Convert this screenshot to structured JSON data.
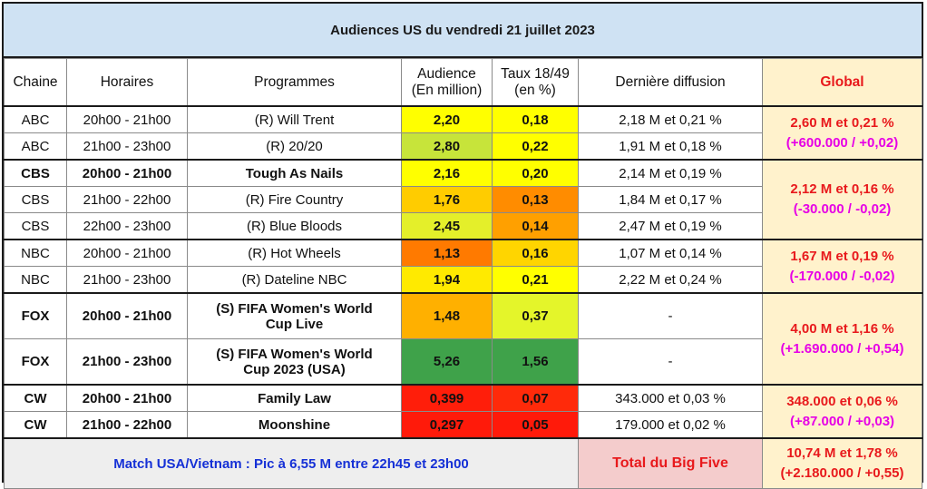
{
  "title": "Audiences US du vendredi 21 juillet 2023",
  "headers": {
    "chaine": "Chaine",
    "horaires": "Horaires",
    "programmes": "Programmes",
    "audience_1": "Audience",
    "audience_2": "(En million)",
    "taux_1": "Taux 18/49",
    "taux_2": "(en %)",
    "derniere": "Dernière diffusion",
    "global": "Global"
  },
  "rows": [
    {
      "chaine": "ABC",
      "horaires": "20h00 - 21h00",
      "programme": "(R) Will Trent",
      "audience": "2,20",
      "taux": "0,18",
      "derniere": "2,18 M et 0,21 %",
      "aud_color": "#ffff00",
      "taux_color": "#ffff00"
    },
    {
      "chaine": "ABC",
      "horaires": "21h00 - 23h00",
      "programme": "(R) 20/20",
      "audience": "2,80",
      "taux": "0,22",
      "derniere": "1,91 M et 0,18 %",
      "aud_color": "#c7e43a",
      "taux_color": "#ffff00"
    },
    {
      "chaine": "CBS",
      "horaires": "20h00 - 21h00",
      "programme": "Tough As Nails",
      "audience": "2,16",
      "taux": "0,20",
      "derniere": "2,14 M et 0,19 %",
      "aud_color": "#ffff00",
      "taux_color": "#ffff00"
    },
    {
      "chaine": "CBS",
      "horaires": "21h00 - 22h00",
      "programme": "(R) Fire Country",
      "audience": "1,76",
      "taux": "0,13",
      "derniere": "1,84 M et 0,17 %",
      "aud_color": "#ffcc00",
      "taux_color": "#ff8c00"
    },
    {
      "chaine": "CBS",
      "horaires": "22h00 - 23h00",
      "programme": "(R) Blue Bloods",
      "audience": "2,45",
      "taux": "0,14",
      "derniere": "2,47 M et 0,19 %",
      "aud_color": "#e4ef2a",
      "taux_color": "#ffa000"
    },
    {
      "chaine": "NBC",
      "horaires": "20h00 - 21h00",
      "programme": "(R) Hot Wheels",
      "audience": "1,13",
      "taux": "0,16",
      "derniere": "1,07 M et 0,14 %",
      "aud_color": "#ff7a00",
      "taux_color": "#ffd500"
    },
    {
      "chaine": "NBC",
      "horaires": "21h00 - 23h00",
      "programme": "(R) Dateline NBC",
      "audience": "1,94",
      "taux": "0,21",
      "derniere": "2,22 M et 0,24 %",
      "aud_color": "#ffea00",
      "taux_color": "#ffff00"
    },
    {
      "chaine": "FOX",
      "horaires": "20h00 - 21h00",
      "programme_1": "(S) FIFA Women's World",
      "programme_2": "Cup Live",
      "audience": "1,48",
      "taux": "0,37",
      "derniere": "-",
      "aud_color": "#ffb000",
      "taux_color": "#e4f52a"
    },
    {
      "chaine": "FOX",
      "horaires": "21h00 - 23h00",
      "programme_1": "(S) FIFA Women's World",
      "programme_2": "Cup 2023 (USA)",
      "audience": "5,26",
      "taux": "1,56",
      "derniere": "-",
      "aud_color": "#3fa24a",
      "taux_color": "#3fa24a"
    },
    {
      "chaine": "CW",
      "horaires": "20h00 - 21h00",
      "programme": "Family Law",
      "audience": "0,399",
      "taux": "0,07",
      "derniere": "343.000 et 0,03 %",
      "aud_color": "#ff1e0a",
      "taux_color": "#ff2a0a"
    },
    {
      "chaine": "CW",
      "horaires": "21h00 - 22h00",
      "programme": "Moonshine",
      "audience": "0,297",
      "taux": "0,05",
      "derniere": "179.000 et 0,02 %",
      "aud_color": "#ff1a0a",
      "taux_color": "#ff1a0a"
    }
  ],
  "global": {
    "abc_main": "2,60 M et 0,21 %",
    "abc_diff": "(+600.000 / +0,02)",
    "cbs_main": "2,12 M et 0,16 %",
    "cbs_diff": "(-30.000 / -0,02)",
    "nbc_main": "1,67 M et 0,19 %",
    "nbc_diff": "(-170.000 / -0,02)",
    "fox_main": "4,00 M et 1,16 %",
    "fox_diff": "(+1.690.000 / +0,54)",
    "cw_main": "348.000 et 0,06 %",
    "cw_diff": "(+87.000 / +0,03)"
  },
  "footer": {
    "match": "Match USA/Vietnam : Pic à 6,55 M entre 22h45 et 23h00",
    "total_label": "Total du Big Five",
    "total_main": "10,74 M et 1,78 %",
    "total_diff": "(+2.180.000 / +0,55)"
  },
  "colors": {
    "title_bg": "#cfe2f3",
    "global_bg": "#fff2cc",
    "red_text": "#e8191c",
    "magenta_text": "#e600e6",
    "blue_text": "#1530d6",
    "total_bg": "#f4cccc"
  }
}
